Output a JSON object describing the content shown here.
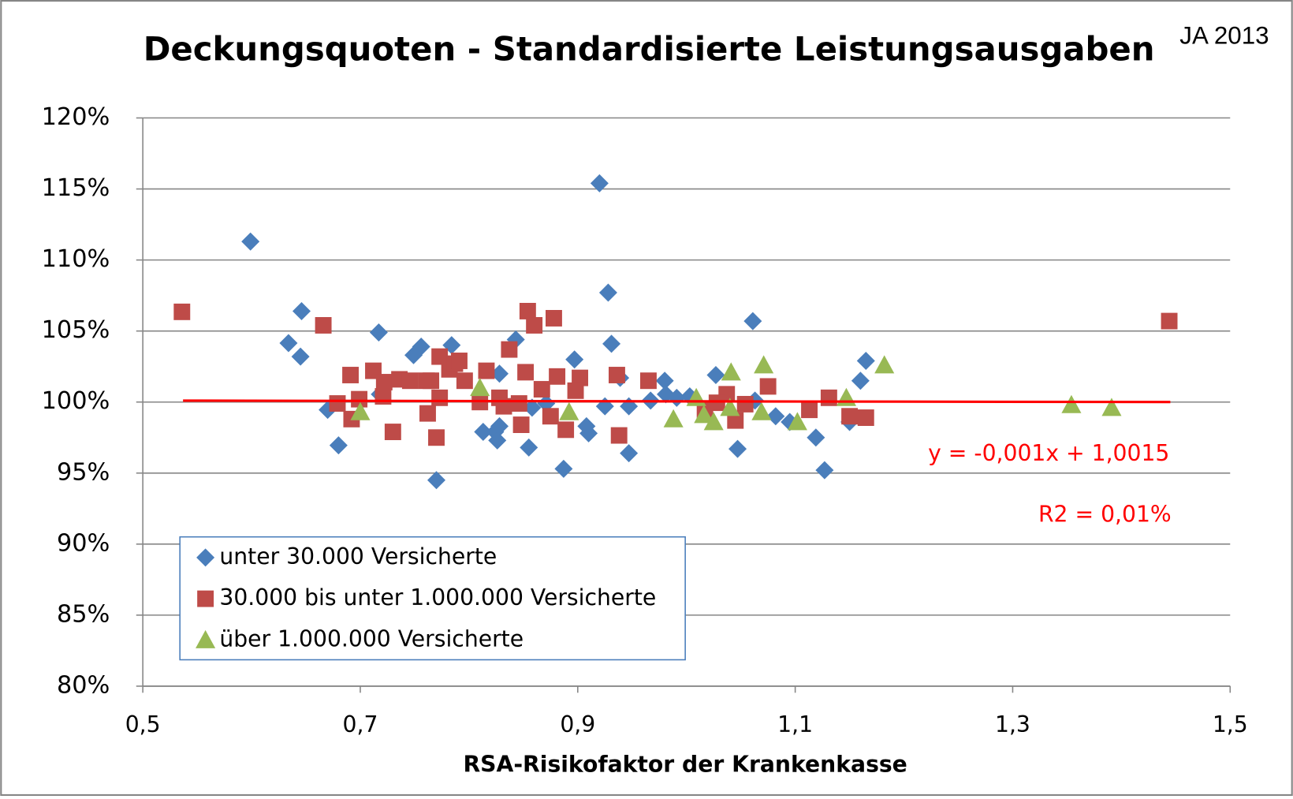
{
  "chart_data": {
    "type": "scatter",
    "title": "Deckungsquoten - Standardisierte Leistungsausgaben",
    "x_label": "RSA-Risikofaktor der Krankenkasse",
    "annotations": [
      "JA 2013",
      "y = -0,001x + 1,0015",
      "R2 = 0,01%"
    ],
    "xlim": [
      0.5,
      1.5
    ],
    "xticks": [
      {
        "value": 0.5,
        "label": "0,5"
      },
      {
        "value": 0.7,
        "label": "0,7"
      },
      {
        "value": 0.9,
        "label": "0,9"
      },
      {
        "value": 1.1,
        "label": "1,1"
      },
      {
        "value": 1.3,
        "label": "1,3"
      },
      {
        "value": 1.5,
        "label": "1,5"
      }
    ],
    "ylim": [
      80,
      120
    ],
    "yticks": [
      {
        "value": 80,
        "label": "80%"
      },
      {
        "value": 85,
        "label": "85%"
      },
      {
        "value": 90,
        "label": "90%"
      },
      {
        "value": 95,
        "label": "95%"
      },
      {
        "value": 100,
        "label": "100%"
      },
      {
        "value": 105,
        "label": "105%"
      },
      {
        "value": 110,
        "label": "110%"
      },
      {
        "value": 115,
        "label": "115%"
      },
      {
        "value": 120,
        "label": "120%"
      }
    ],
    "grid": true,
    "legend": "lower left",
    "series": [
      {
        "name": "unter 30.000 Versicherte",
        "color": "#4a7ebb",
        "marker": "diamond",
        "x": [
          0.599,
          0.634,
          0.645,
          0.646,
          0.67,
          0.68,
          0.717,
          0.718,
          0.749,
          0.756,
          0.77,
          0.784,
          0.813,
          0.824,
          0.826,
          0.828,
          0.828,
          0.843,
          0.855,
          0.858,
          0.871,
          0.887,
          0.897,
          0.908,
          0.91,
          0.92,
          0.928,
          0.931,
          0.925,
          0.947,
          0.947,
          0.939,
          0.967,
          0.98,
          0.981,
          0.991,
          1.003,
          1.027,
          1.047,
          1.061,
          1.063,
          1.082,
          1.095,
          1.119,
          1.127,
          1.15,
          1.16,
          1.165
        ],
        "values": [
          111.3,
          104.15,
          103.2,
          106.4,
          99.45,
          96.95,
          104.9,
          100.55,
          103.3,
          103.9,
          94.5,
          104.0,
          97.9,
          97.9,
          97.3,
          102.0,
          98.3,
          104.4,
          96.8,
          99.6,
          99.9,
          95.3,
          103.0,
          98.3,
          97.8,
          115.4,
          107.7,
          104.1,
          99.7,
          96.4,
          99.7,
          101.7,
          100.1,
          101.5,
          100.55,
          100.3,
          100.4,
          101.9,
          96.7,
          105.7,
          100.1,
          99.0,
          98.6,
          97.5,
          95.2,
          98.6,
          101.5,
          102.9
        ]
      },
      {
        "name": "30.000 bis unter 1.000.000 Versicherte",
        "color": "#be4b48",
        "marker": "square",
        "x": [
          0.536,
          0.666,
          0.691,
          0.692,
          0.679,
          0.699,
          0.712,
          0.722,
          0.721,
          0.73,
          0.736,
          0.746,
          0.761,
          0.762,
          0.765,
          0.77,
          0.773,
          0.773,
          0.782,
          0.787,
          0.791,
          0.796,
          0.81,
          0.816,
          0.828,
          0.837,
          0.832,
          0.846,
          0.848,
          0.852,
          0.854,
          0.86,
          0.867,
          0.875,
          0.878,
          0.881,
          0.889,
          0.902,
          0.898,
          0.938,
          0.936,
          0.965,
          1.037,
          1.045,
          1.054,
          1.075,
          1.113,
          1.131,
          1.15,
          1.165,
          1.444,
          1.028,
          1.017
        ],
        "values": [
          106.35,
          105.4,
          101.9,
          98.8,
          99.9,
          100.2,
          102.2,
          101.4,
          100.4,
          97.9,
          101.6,
          101.5,
          101.5,
          99.2,
          101.5,
          97.5,
          103.2,
          100.3,
          102.3,
          102.7,
          102.9,
          101.5,
          100.0,
          102.2,
          100.3,
          103.7,
          99.7,
          99.9,
          98.4,
          102.1,
          106.4,
          105.4,
          100.9,
          99.0,
          105.9,
          101.8,
          98.05,
          101.7,
          100.8,
          97.65,
          101.9,
          101.5,
          100.55,
          98.7,
          99.85,
          101.1,
          99.45,
          100.3,
          99.0,
          98.9,
          105.7,
          99.95,
          99.4
        ]
      },
      {
        "name": "über 1.000.000 Versicherte",
        "color": "#98b954",
        "marker": "triangle",
        "x": [
          0.7,
          0.81,
          0.892,
          0.988,
          1.009,
          1.016,
          1.025,
          1.041,
          1.04,
          1.071,
          1.069,
          1.102,
          1.147,
          1.182,
          1.354,
          1.391
        ],
        "values": [
          99.3,
          101.0,
          99.3,
          98.8,
          100.3,
          99.1,
          98.6,
          102.1,
          99.6,
          102.6,
          99.3,
          98.6,
          100.3,
          102.6,
          99.8,
          99.6
        ]
      }
    ],
    "trendline": {
      "x": [
        0.537,
        1.445
      ],
      "values": [
        100.1,
        100.0
      ],
      "color": "#ff0000"
    }
  }
}
